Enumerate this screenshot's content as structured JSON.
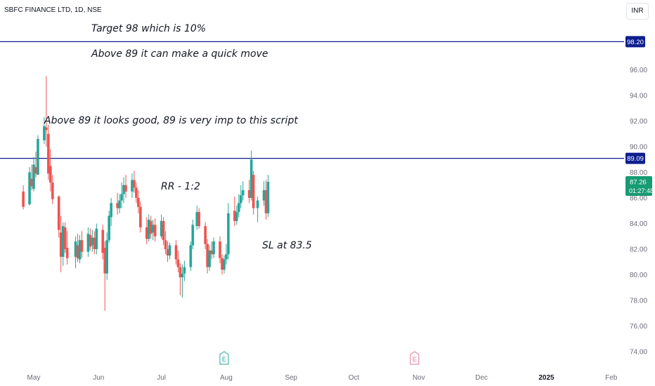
{
  "header": {
    "title": "SBFC FINANCE LTD, 1D, NSE",
    "currency": "INR"
  },
  "annotations": {
    "target": "Target 98 which is 10%",
    "quick_move": "Above 89 it can make a quick move",
    "looks_good": "Above 89 it looks good, 89 is very imp to this script",
    "rr": "RR - 1:2",
    "sl": "SL at 83.5"
  },
  "colors": {
    "up": "#26a69a",
    "down": "#ef5350",
    "level_line": "#0d1e8f",
    "axis_text": "#6a6d78",
    "current_price_bg": "#169b72",
    "earnings_up": "#26a69a",
    "earnings_future": "#e27693"
  },
  "chart_data": {
    "type": "candlestick",
    "title": "SBFC FINANCE LTD, 1D, NSE",
    "ylim": [
      73.0,
      100.0
    ],
    "y_ticks": [
      "96.00",
      "94.00",
      "92.00",
      "90.00",
      "88.00",
      "86.00",
      "84.00",
      "82.00",
      "80.00",
      "78.00",
      "76.00",
      "74.00"
    ],
    "x_ticks": [
      {
        "label": "May",
        "date": "2024-05-01",
        "bold": false
      },
      {
        "label": "Jun",
        "date": "2024-06-01",
        "bold": false
      },
      {
        "label": "Jul",
        "date": "2024-07-01",
        "bold": false
      },
      {
        "label": "Aug",
        "date": "2024-08-01",
        "bold": false
      },
      {
        "label": "Sep",
        "date": "2024-09-01",
        "bold": false
      },
      {
        "label": "Oct",
        "date": "2024-10-01",
        "bold": false
      },
      {
        "label": "Nov",
        "date": "2024-11-01",
        "bold": false
      },
      {
        "label": "Dec",
        "date": "2024-12-01",
        "bold": false
      },
      {
        "label": "2025",
        "date": "2025-01-01",
        "bold": true
      },
      {
        "label": "Feb",
        "date": "2025-02-01",
        "bold": false
      }
    ],
    "horizontal_levels": [
      {
        "value": 98.2,
        "label": "98.20"
      },
      {
        "value": 89.09,
        "label": "89.09"
      }
    ],
    "current_price": {
      "value": 87.26,
      "label": "87.26",
      "countdown": "01:27:48"
    },
    "earnings_markers": [
      {
        "date": "2024-07-31",
        "label": "E",
        "kind": "reported"
      },
      {
        "date": "2024-10-30",
        "label": "E",
        "kind": "upcoming"
      }
    ],
    "candles": [
      {
        "d": "2024-04-26",
        "o": 86.5,
        "h": 87.0,
        "l": 85.1,
        "c": 85.3
      },
      {
        "d": "2024-04-29",
        "o": 85.5,
        "h": 88.4,
        "l": 85.4,
        "c": 88.0
      },
      {
        "d": "2024-04-30",
        "o": 87.5,
        "h": 88.6,
        "l": 86.6,
        "c": 86.9
      },
      {
        "d": "2024-05-01",
        "o": 86.7,
        "h": 89.2,
        "l": 86.5,
        "c": 88.6
      },
      {
        "d": "2024-05-02",
        "o": 88.4,
        "h": 89.6,
        "l": 87.6,
        "c": 87.9
      },
      {
        "d": "2024-05-03",
        "o": 87.8,
        "h": 90.9,
        "l": 87.8,
        "c": 90.6
      },
      {
        "d": "2024-05-06",
        "o": 90.5,
        "h": 92.3,
        "l": 90.2,
        "c": 91.6
      },
      {
        "d": "2024-05-07",
        "o": 91.5,
        "h": 95.5,
        "l": 90.0,
        "c": 91.3
      },
      {
        "d": "2024-05-08",
        "o": 91.0,
        "h": 91.7,
        "l": 87.4,
        "c": 87.9
      },
      {
        "d": "2024-05-09",
        "o": 88.5,
        "h": 89.8,
        "l": 86.5,
        "c": 87.2
      },
      {
        "d": "2024-05-10",
        "o": 87.2,
        "h": 87.8,
        "l": 85.5,
        "c": 85.9
      },
      {
        "d": "2024-05-13",
        "o": 86.1,
        "h": 86.2,
        "l": 82.9,
        "c": 83.5
      },
      {
        "d": "2024-05-14",
        "o": 83.3,
        "h": 84.6,
        "l": 80.2,
        "c": 81.4
      },
      {
        "d": "2024-05-15",
        "o": 81.4,
        "h": 84.1,
        "l": 80.7,
        "c": 83.8
      },
      {
        "d": "2024-05-16",
        "o": 83.7,
        "h": 84.1,
        "l": 81.7,
        "c": 82.0
      },
      {
        "d": "2024-05-17",
        "o": 82.1,
        "h": 83.4,
        "l": 80.8,
        "c": 81.3
      },
      {
        "d": "2024-05-21",
        "o": 81.4,
        "h": 83.0,
        "l": 80.5,
        "c": 82.6
      },
      {
        "d": "2024-05-22",
        "o": 82.3,
        "h": 83.2,
        "l": 81.0,
        "c": 81.3
      },
      {
        "d": "2024-05-23",
        "o": 81.2,
        "h": 83.1,
        "l": 80.9,
        "c": 82.7
      },
      {
        "d": "2024-05-24",
        "o": 82.7,
        "h": 83.4,
        "l": 81.3,
        "c": 81.8
      },
      {
        "d": "2024-05-27",
        "o": 81.8,
        "h": 83.7,
        "l": 81.4,
        "c": 83.2
      },
      {
        "d": "2024-05-28",
        "o": 83.1,
        "h": 83.6,
        "l": 81.9,
        "c": 82.2
      },
      {
        "d": "2024-05-29",
        "o": 82.3,
        "h": 83.5,
        "l": 81.8,
        "c": 82.9
      },
      {
        "d": "2024-05-30",
        "o": 82.9,
        "h": 83.4,
        "l": 81.6,
        "c": 82.0
      },
      {
        "d": "2024-05-31",
        "o": 82.0,
        "h": 84.0,
        "l": 81.6,
        "c": 83.6
      },
      {
        "d": "2024-06-03",
        "o": 83.5,
        "h": 83.9,
        "l": 81.2,
        "c": 81.7
      },
      {
        "d": "2024-06-04",
        "o": 82.1,
        "h": 82.6,
        "l": 77.2,
        "c": 80.1
      },
      {
        "d": "2024-06-05",
        "o": 80.1,
        "h": 83.3,
        "l": 79.6,
        "c": 82.7
      },
      {
        "d": "2024-06-06",
        "o": 82.7,
        "h": 85.0,
        "l": 82.5,
        "c": 84.6
      },
      {
        "d": "2024-06-07",
        "o": 84.5,
        "h": 86.0,
        "l": 83.8,
        "c": 85.6
      },
      {
        "d": "2024-06-10",
        "o": 85.6,
        "h": 86.4,
        "l": 84.7,
        "c": 85.2
      },
      {
        "d": "2024-06-11",
        "o": 85.2,
        "h": 86.3,
        "l": 84.8,
        "c": 85.8
      },
      {
        "d": "2024-06-12",
        "o": 85.8,
        "h": 87.2,
        "l": 85.2,
        "c": 86.3
      },
      {
        "d": "2024-06-13",
        "o": 86.3,
        "h": 87.6,
        "l": 85.6,
        "c": 87.0
      },
      {
        "d": "2024-06-14",
        "o": 87.0,
        "h": 87.8,
        "l": 86.0,
        "c": 86.5
      },
      {
        "d": "2024-06-17",
        "o": 86.5,
        "h": 87.9,
        "l": 86.0,
        "c": 87.4
      },
      {
        "d": "2024-06-18",
        "o": 87.4,
        "h": 88.1,
        "l": 86.4,
        "c": 86.8
      },
      {
        "d": "2024-06-19",
        "o": 86.8,
        "h": 87.2,
        "l": 85.6,
        "c": 86.0
      },
      {
        "d": "2024-06-20",
        "o": 86.0,
        "h": 86.6,
        "l": 84.8,
        "c": 85.3
      },
      {
        "d": "2024-06-21",
        "o": 85.3,
        "h": 85.7,
        "l": 83.3,
        "c": 83.7
      },
      {
        "d": "2024-06-24",
        "o": 83.7,
        "h": 84.5,
        "l": 82.4,
        "c": 82.8
      },
      {
        "d": "2024-06-25",
        "o": 82.8,
        "h": 84.7,
        "l": 82.6,
        "c": 84.3
      },
      {
        "d": "2024-06-26",
        "o": 84.2,
        "h": 84.6,
        "l": 82.8,
        "c": 83.2
      },
      {
        "d": "2024-06-27",
        "o": 83.3,
        "h": 84.3,
        "l": 82.7,
        "c": 83.9
      },
      {
        "d": "2024-06-28",
        "o": 83.9,
        "h": 84.4,
        "l": 82.6,
        "c": 83.0
      },
      {
        "d": "2024-07-01",
        "o": 83.0,
        "h": 84.7,
        "l": 82.8,
        "c": 84.2
      },
      {
        "d": "2024-07-02",
        "o": 84.2,
        "h": 84.5,
        "l": 82.3,
        "c": 82.7
      },
      {
        "d": "2024-07-03",
        "o": 82.7,
        "h": 83.4,
        "l": 81.6,
        "c": 82.0
      },
      {
        "d": "2024-07-04",
        "o": 82.0,
        "h": 82.6,
        "l": 81.0,
        "c": 81.5
      },
      {
        "d": "2024-07-05",
        "o": 81.5,
        "h": 82.5,
        "l": 81.2,
        "c": 82.3
      },
      {
        "d": "2024-07-08",
        "o": 82.3,
        "h": 82.7,
        "l": 80.8,
        "c": 81.2
      },
      {
        "d": "2024-07-09",
        "o": 81.2,
        "h": 81.9,
        "l": 80.2,
        "c": 80.6
      },
      {
        "d": "2024-07-10",
        "o": 80.6,
        "h": 80.9,
        "l": 78.4,
        "c": 79.8
      },
      {
        "d": "2024-07-11",
        "o": 79.8,
        "h": 80.8,
        "l": 78.2,
        "c": 80.1
      },
      {
        "d": "2024-07-12",
        "o": 80.1,
        "h": 81.1,
        "l": 79.5,
        "c": 80.6
      },
      {
        "d": "2024-07-15",
        "o": 80.6,
        "h": 82.6,
        "l": 80.3,
        "c": 82.3
      },
      {
        "d": "2024-07-16",
        "o": 82.3,
        "h": 84.3,
        "l": 82.0,
        "c": 83.9
      },
      {
        "d": "2024-07-18",
        "o": 83.8,
        "h": 85.4,
        "l": 83.5,
        "c": 84.9
      },
      {
        "d": "2024-07-19",
        "o": 84.9,
        "h": 85.2,
        "l": 83.6,
        "c": 83.8
      },
      {
        "d": "2024-07-22",
        "o": 83.8,
        "h": 84.1,
        "l": 82.0,
        "c": 82.4
      },
      {
        "d": "2024-07-23",
        "o": 82.4,
        "h": 82.8,
        "l": 80.1,
        "c": 80.6
      },
      {
        "d": "2024-07-24",
        "o": 80.6,
        "h": 82.3,
        "l": 80.3,
        "c": 81.9
      },
      {
        "d": "2024-07-25",
        "o": 81.9,
        "h": 82.6,
        "l": 81.2,
        "c": 81.6
      },
      {
        "d": "2024-07-26",
        "o": 81.6,
        "h": 82.9,
        "l": 81.3,
        "c": 82.6
      },
      {
        "d": "2024-07-29",
        "o": 82.6,
        "h": 83.0,
        "l": 80.9,
        "c": 81.3
      },
      {
        "d": "2024-07-30",
        "o": 81.3,
        "h": 81.6,
        "l": 80.0,
        "c": 80.4
      },
      {
        "d": "2024-07-31",
        "o": 80.4,
        "h": 81.5,
        "l": 80.1,
        "c": 81.2
      },
      {
        "d": "2024-08-01",
        "o": 81.2,
        "h": 82.4,
        "l": 80.8,
        "c": 81.6
      },
      {
        "d": "2024-08-02",
        "o": 81.6,
        "h": 85.6,
        "l": 81.2,
        "c": 84.8
      },
      {
        "d": "2024-08-05",
        "o": 85.0,
        "h": 86.1,
        "l": 83.8,
        "c": 84.2
      },
      {
        "d": "2024-08-06",
        "o": 84.2,
        "h": 85.4,
        "l": 83.9,
        "c": 84.9
      },
      {
        "d": "2024-08-07",
        "o": 84.9,
        "h": 86.3,
        "l": 84.5,
        "c": 85.6
      },
      {
        "d": "2024-08-08",
        "o": 85.6,
        "h": 87.0,
        "l": 85.2,
        "c": 86.2
      },
      {
        "d": "2024-08-09",
        "o": 86.2,
        "h": 87.3,
        "l": 85.8,
        "c": 86.6
      },
      {
        "d": "2024-08-12",
        "o": 86.6,
        "h": 87.4,
        "l": 85.6,
        "c": 86.0
      },
      {
        "d": "2024-08-13",
        "o": 86.0,
        "h": 89.7,
        "l": 85.8,
        "c": 89.0
      },
      {
        "d": "2024-08-14",
        "o": 87.8,
        "h": 88.1,
        "l": 84.7,
        "c": 85.2
      },
      {
        "d": "2024-08-16",
        "o": 85.2,
        "h": 86.1,
        "l": 84.1,
        "c": 85.8
      },
      {
        "d": "2024-08-19",
        "o": 85.8,
        "h": 87.3,
        "l": 85.4,
        "c": 86.6
      },
      {
        "d": "2024-08-20",
        "o": 86.6,
        "h": 87.4,
        "l": 84.3,
        "c": 84.8
      },
      {
        "d": "2024-08-21",
        "o": 84.8,
        "h": 87.8,
        "l": 84.5,
        "c": 87.26
      }
    ]
  }
}
